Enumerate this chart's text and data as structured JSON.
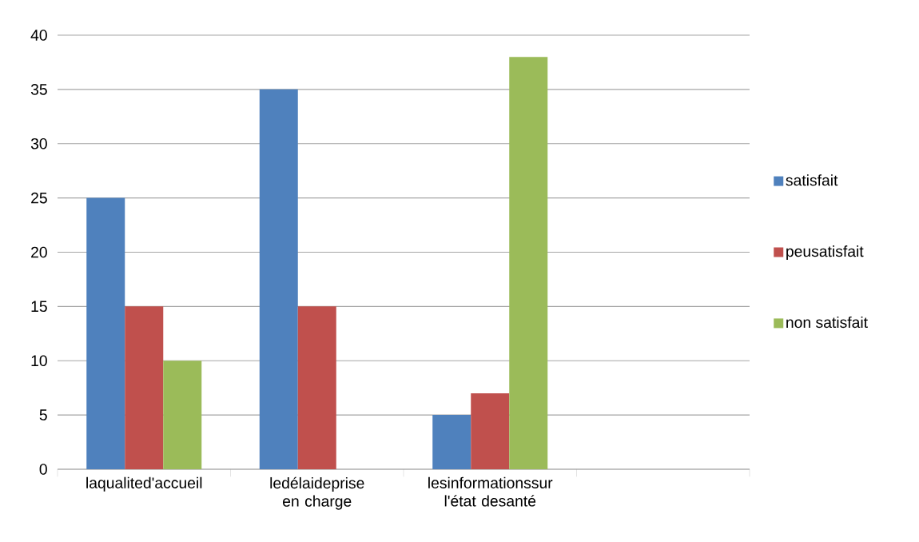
{
  "chart_data": {
    "type": "bar",
    "categories": [
      "laqualited'accueil",
      "ledélaideprise en charge",
      "lesinformationssur l'état desanté",
      null
    ],
    "series": [
      {
        "name": "satisfait",
        "color": "#4f81bd",
        "values": [
          25,
          35,
          5,
          null
        ]
      },
      {
        "name": "peusatisfait",
        "color": "#c0504d",
        "values": [
          15,
          15,
          7,
          null
        ]
      },
      {
        "name": "non satisfait",
        "color": "#9bbb59",
        "values": [
          10,
          null,
          38,
          null
        ]
      }
    ],
    "ylim": [
      0,
      40
    ],
    "yticks": [
      0,
      5,
      10,
      15,
      20,
      25,
      30,
      35,
      40
    ],
    "grid": "y",
    "legend": "right"
  }
}
